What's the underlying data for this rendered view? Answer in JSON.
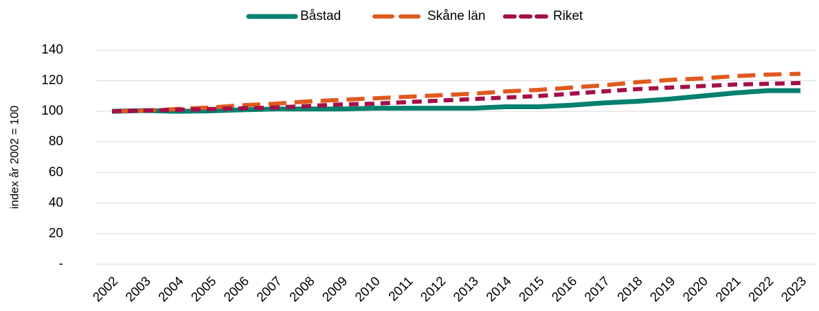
{
  "chart_data": {
    "type": "line",
    "y_label": "index år 2002 = 100",
    "categories": [
      "2002",
      "2003",
      "2004",
      "2005",
      "2006",
      "2007",
      "2008",
      "2009",
      "2010",
      "2011",
      "2012",
      "2013",
      "2014",
      "2015",
      "2016",
      "2017",
      "2018",
      "2019",
      "2020",
      "2021",
      "2022",
      "2023"
    ],
    "series": [
      {
        "name": "Båstad",
        "color": "#00806e",
        "style": "solid",
        "values": [
          100,
          100.5,
          100,
          100.3,
          101,
          101.5,
          101.5,
          101.5,
          102,
          102,
          102,
          102,
          103,
          103,
          104,
          105.5,
          106.5,
          108,
          110,
          112,
          113.5,
          113.5
        ]
      },
      {
        "name": "Skåne län",
        "color": "#e05a1e",
        "style": "long-dash",
        "values": [
          100,
          100.5,
          101.5,
          102.5,
          104,
          105,
          106.5,
          107.5,
          108.5,
          109.5,
          110.5,
          111.5,
          113,
          114,
          115.5,
          117,
          119,
          120.5,
          121.5,
          123,
          124,
          124.5
        ]
      },
      {
        "name": "Riket",
        "color": "#a50f4a",
        "style": "short-dash",
        "values": [
          100,
          100.5,
          101,
          101.5,
          102,
          102.5,
          103.5,
          104.5,
          105,
          106,
          107,
          108,
          109,
          110,
          111.5,
          113,
          114.5,
          115.5,
          116.5,
          117.5,
          118,
          118.5
        ]
      }
    ],
    "ylim": [
      0,
      140
    ],
    "yticks": [
      {
        "value": 0,
        "label": "-"
      },
      20,
      40,
      60,
      80,
      100,
      120,
      140
    ],
    "grid": true,
    "legend": "top"
  }
}
